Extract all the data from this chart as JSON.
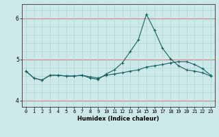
{
  "title": "",
  "xlabel": "Humidex (Indice chaleur)",
  "x": [
    0,
    1,
    2,
    3,
    4,
    5,
    6,
    7,
    8,
    9,
    10,
    11,
    12,
    13,
    14,
    15,
    16,
    17,
    18,
    19,
    20,
    21,
    22,
    23
  ],
  "line1": [
    4.72,
    4.55,
    4.5,
    4.62,
    4.62,
    4.6,
    4.6,
    4.62,
    4.58,
    4.55,
    4.62,
    4.65,
    4.68,
    4.72,
    4.75,
    4.82,
    4.85,
    4.88,
    4.92,
    4.95,
    4.95,
    4.88,
    4.78,
    4.62
  ],
  "line2": [
    4.72,
    4.55,
    4.5,
    4.62,
    4.62,
    4.6,
    4.6,
    4.62,
    4.55,
    4.52,
    4.65,
    4.75,
    4.92,
    5.2,
    5.48,
    6.1,
    5.72,
    5.28,
    5.02,
    4.85,
    4.75,
    4.72,
    4.68,
    4.6
  ],
  "bg_color": "#cce8e8",
  "line_color": "#1a6060",
  "grid_color_major": "#d08080",
  "grid_color_minor": "#aad4d4",
  "ylim": [
    3.85,
    6.35
  ],
  "xlim": [
    -0.5,
    23.5
  ],
  "yticks": [
    4,
    5,
    6
  ],
  "minor_yticks": [
    4.2,
    4.4,
    4.6,
    4.8,
    5.2,
    5.4,
    5.6,
    5.8,
    6.2
  ],
  "xticks": [
    0,
    1,
    2,
    3,
    4,
    5,
    6,
    7,
    8,
    9,
    10,
    11,
    12,
    13,
    14,
    15,
    16,
    17,
    18,
    19,
    20,
    21,
    22,
    23
  ],
  "tick_fontsize": 5.0,
  "xlabel_fontsize": 6.0
}
